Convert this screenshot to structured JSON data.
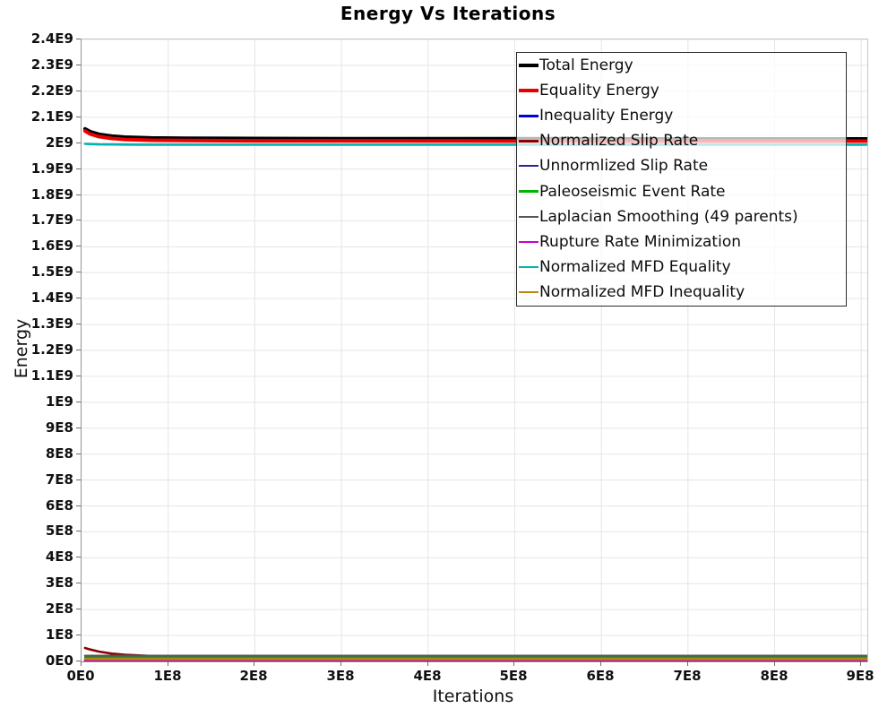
{
  "title": "Energy Vs Iterations",
  "axes": {
    "x_label": "Iterations",
    "y_label": "Energy",
    "x_ticks": [
      "0E0",
      "1E8",
      "2E8",
      "3E8",
      "4E8",
      "5E8",
      "6E8",
      "7E8",
      "8E8",
      "9E8"
    ],
    "y_ticks": [
      "0E0",
      "1E8",
      "2E8",
      "3E8",
      "4E8",
      "5E8",
      "6E8",
      "7E8",
      "8E8",
      "9E8",
      "1E9",
      "1.1E9",
      "1.2E9",
      "1.3E9",
      "1.4E9",
      "1.5E9",
      "1.6E9",
      "1.7E9",
      "1.8E9",
      "1.9E9",
      "2E9",
      "2.1E9",
      "2.2E9",
      "2.3E9",
      "2.4E9"
    ]
  },
  "colors": {
    "grid": "#e5e5e5",
    "axis": "#939393",
    "legend_border": "#2b2b2b",
    "legend_background": "rgba(255,255,255,0.72)"
  },
  "chart_data": {
    "type": "line",
    "title": "Energy Vs Iterations",
    "xlabel": "Iterations",
    "ylabel": "Energy",
    "xlim": [
      0,
      907000000
    ],
    "ylim": [
      0,
      2400000000
    ],
    "x_tick_step": 100000000,
    "y_tick_step": 100000000,
    "grid": true,
    "legend_position": "inside-top-right",
    "series": [
      {
        "name": "Total Energy",
        "color": "#000000",
        "width": 4,
        "x": [
          4000000,
          10000000,
          20000000,
          35000000,
          50000000,
          80000000,
          120000000,
          200000000,
          300000000,
          500000000,
          700000000,
          907000000
        ],
        "y": [
          2055000000,
          2044000000,
          2034000000,
          2027000000,
          2023000000,
          2020000000,
          2019000000,
          2018000000,
          2017000000,
          2017000000,
          2016000000,
          2016000000
        ]
      },
      {
        "name": "Equality Energy",
        "color": "#e80000",
        "width": 4,
        "x": [
          4000000,
          10000000,
          20000000,
          35000000,
          50000000,
          80000000,
          120000000,
          200000000,
          300000000,
          500000000,
          700000000,
          907000000
        ],
        "y": [
          2047000000,
          2035000000,
          2025000000,
          2018000000,
          2014000000,
          2011000000,
          2010000000,
          2009000000,
          2009000000,
          2008000000,
          2008000000,
          2008000000
        ]
      },
      {
        "name": "Inequality Energy",
        "color": "#0000dd",
        "width": 2.6,
        "x": [
          4000000,
          907000000
        ],
        "y": [
          3000000,
          3000000
        ]
      },
      {
        "name": "Normalized Slip Rate",
        "color": "#8b0000",
        "width": 2.6,
        "x": [
          4000000,
          10000000,
          20000000,
          35000000,
          50000000,
          80000000,
          120000000,
          200000000,
          300000000,
          500000000,
          700000000,
          907000000
        ],
        "y": [
          52000000,
          46000000,
          38000000,
          30000000,
          26000000,
          21000000,
          18000000,
          16000000,
          15000000,
          14000000,
          14000000,
          14000000
        ]
      },
      {
        "name": "Unnormlized Slip Rate",
        "color": "#26268e",
        "width": 1.8,
        "x": [
          4000000,
          907000000
        ],
        "y": [
          6000000,
          6000000
        ]
      },
      {
        "name": "Paleoseismic Event Rate",
        "color": "#00b400",
        "width": 2.2,
        "x": [
          4000000,
          907000000
        ],
        "y": [
          16000000,
          16000000
        ]
      },
      {
        "name": "Laplacian Smoothing (49 parents)",
        "color": "#565656",
        "width": 2.2,
        "x": [
          4000000,
          907000000
        ],
        "y": [
          22000000,
          22000000
        ]
      },
      {
        "name": "Rupture Rate Minimization",
        "color": "#cc00cc",
        "width": 2.2,
        "x": [
          4000000,
          907000000
        ],
        "y": [
          4000000,
          4000000
        ]
      },
      {
        "name": "Normalized MFD Equality",
        "color": "#00b2b2",
        "width": 2.6,
        "x": [
          4000000,
          20000000,
          60000000,
          907000000
        ],
        "y": [
          1997000000,
          1995000000,
          1994000000,
          1994000000
        ]
      },
      {
        "name": "Normalized MFD Inequality",
        "color": "#b8860b",
        "width": 2.6,
        "x": [
          4000000,
          907000000
        ],
        "y": [
          9000000,
          9000000
        ]
      }
    ]
  }
}
